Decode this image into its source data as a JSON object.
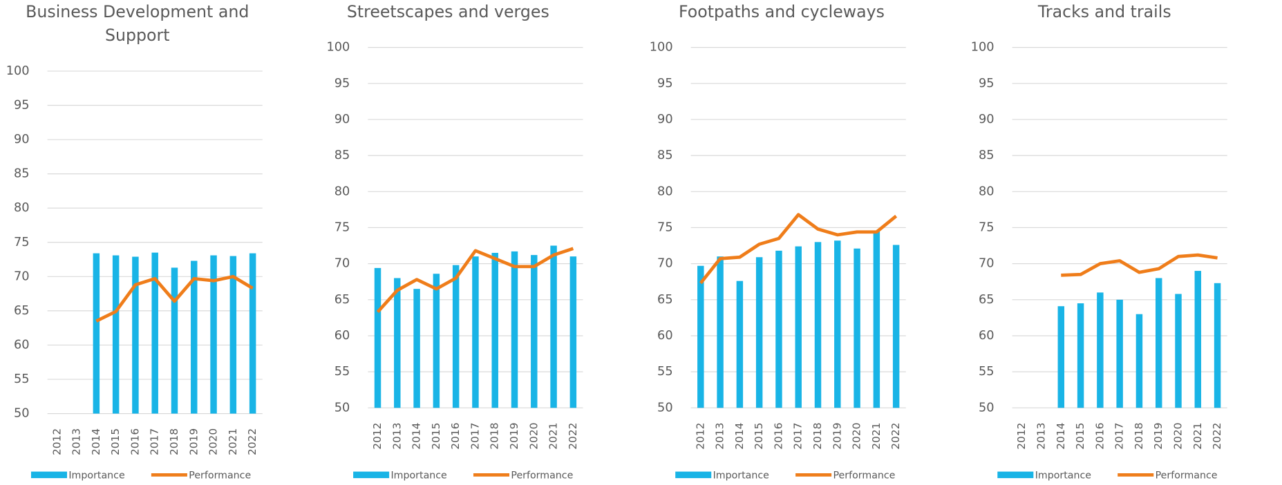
{
  "chart_data": [
    {
      "type": "bar_line",
      "title": "Business Development and Support",
      "categories": [
        "2012",
        "2013",
        "2014",
        "2015",
        "2016",
        "2017",
        "2018",
        "2019",
        "2020",
        "2021",
        "2022"
      ],
      "series": [
        {
          "name": "Importance",
          "type": "bar",
          "color": "#19b4e6",
          "values": [
            null,
            null,
            73.4,
            73.1,
            72.9,
            73.5,
            71.3,
            72.3,
            73.1,
            73.0,
            73.4
          ]
        },
        {
          "name": "Performance",
          "type": "line",
          "color": "#ef7d1a",
          "values": [
            null,
            null,
            63.5,
            64.9,
            68.8,
            69.7,
            66.4,
            69.7,
            69.4,
            70.0,
            68.3
          ]
        }
      ],
      "ylim": [
        50,
        100
      ],
      "yticks": [
        50,
        55,
        60,
        65,
        70,
        75,
        80,
        85,
        90,
        95,
        100
      ],
      "grid": true,
      "legend": "bottom"
    },
    {
      "type": "bar_line",
      "title": "Streetscapes and verges",
      "categories": [
        "2012",
        "2013",
        "2014",
        "2015",
        "2016",
        "2017",
        "2018",
        "2019",
        "2020",
        "2021",
        "2022"
      ],
      "series": [
        {
          "name": "Importance",
          "type": "bar",
          "color": "#19b4e6",
          "values": [
            69.4,
            68.0,
            66.5,
            68.6,
            69.8,
            71.0,
            71.5,
            71.7,
            71.2,
            72.5,
            71.0
          ]
        },
        {
          "name": "Performance",
          "type": "line",
          "color": "#ef7d1a",
          "values": [
            63.3,
            66.3,
            67.8,
            66.5,
            68.0,
            71.8,
            70.7,
            69.6,
            69.6,
            71.2,
            72.1
          ]
        }
      ],
      "ylim": [
        50,
        100
      ],
      "yticks": [
        50,
        55,
        60,
        65,
        70,
        75,
        80,
        85,
        90,
        95,
        100
      ],
      "grid": true,
      "legend": "bottom"
    },
    {
      "type": "bar_line",
      "title": "Footpaths and cycleways",
      "categories": [
        "2012",
        "2013",
        "2014",
        "2015",
        "2016",
        "2017",
        "2018",
        "2019",
        "2020",
        "2021",
        "2022"
      ],
      "series": [
        {
          "name": "Importance",
          "type": "bar",
          "color": "#19b4e6",
          "values": [
            69.7,
            71.0,
            67.6,
            70.9,
            71.8,
            72.4,
            73.0,
            73.2,
            72.1,
            74.5,
            72.6
          ]
        },
        {
          "name": "Performance",
          "type": "line",
          "color": "#ef7d1a",
          "values": [
            67.3,
            70.7,
            70.9,
            72.7,
            73.5,
            76.8,
            74.8,
            74.0,
            74.4,
            74.4,
            76.6
          ]
        }
      ],
      "ylim": [
        50,
        100
      ],
      "yticks": [
        50,
        55,
        60,
        65,
        70,
        75,
        80,
        85,
        90,
        95,
        100
      ],
      "grid": true,
      "legend": "bottom"
    },
    {
      "type": "bar_line",
      "title": "Tracks and trails",
      "categories": [
        "2012",
        "2013",
        "2014",
        "2015",
        "2016",
        "2017",
        "2018",
        "2019",
        "2020",
        "2021",
        "2022"
      ],
      "series": [
        {
          "name": "Importance",
          "type": "bar",
          "color": "#19b4e6",
          "values": [
            null,
            null,
            64.1,
            64.5,
            66.0,
            65.0,
            63.0,
            68.0,
            65.8,
            69.0,
            67.3
          ]
        },
        {
          "name": "Performance",
          "type": "line",
          "color": "#ef7d1a",
          "values": [
            null,
            null,
            68.4,
            68.5,
            70.0,
            70.4,
            68.8,
            69.3,
            71.0,
            71.2,
            70.8
          ]
        }
      ],
      "ylim": [
        50,
        100
      ],
      "yticks": [
        50,
        55,
        60,
        65,
        70,
        75,
        80,
        85,
        90,
        95,
        100
      ],
      "grid": true,
      "legend": "bottom"
    }
  ]
}
